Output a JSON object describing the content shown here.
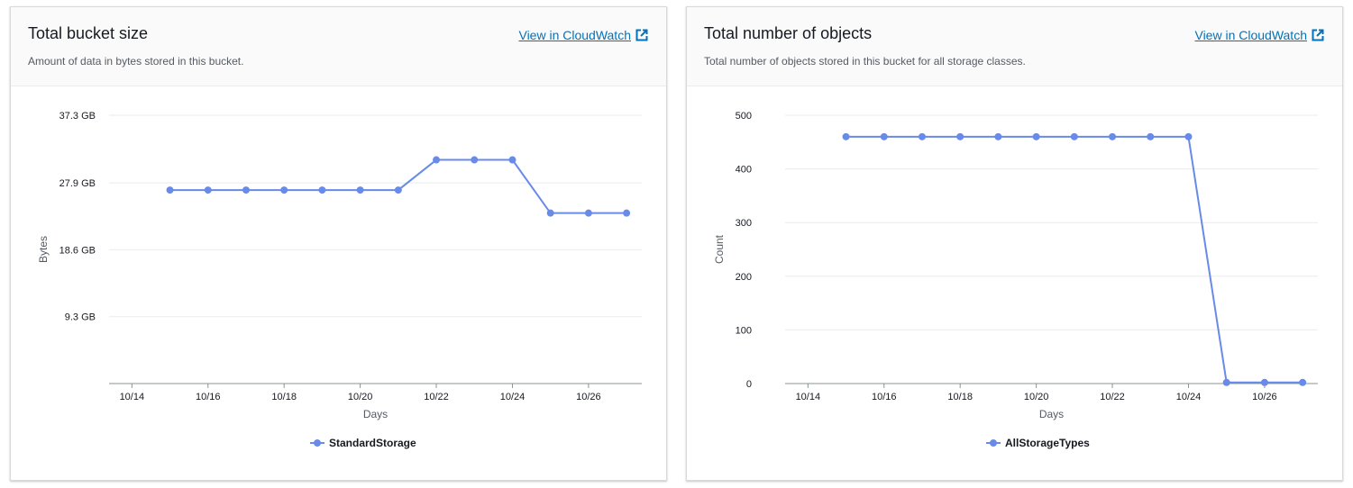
{
  "panels": [
    {
      "title": "Total bucket size",
      "description": "Amount of data in bytes stored in this bucket.",
      "link_label": "View in CloudWatch"
    },
    {
      "title": "Total number of objects",
      "description": "Total number of objects stored in this bucket for all storage classes.",
      "link_label": "View in CloudWatch"
    }
  ],
  "chart_data": [
    {
      "type": "line",
      "title": "",
      "xlabel": "Days",
      "ylabel": "Bytes",
      "x_ticks": [
        "10/14",
        "10/16",
        "10/18",
        "10/20",
        "10/22",
        "10/24",
        "10/26"
      ],
      "y_ticks": [
        "9.3 GB",
        "18.6 GB",
        "27.9 GB",
        "37.3 GB"
      ],
      "y_tick_values": [
        9.3,
        18.6,
        27.9,
        37.3
      ],
      "ylim": [
        0,
        37.3
      ],
      "xlim_days": [
        13.4,
        27.4
      ],
      "x": [
        "10/15",
        "10/16",
        "10/17",
        "10/18",
        "10/19",
        "10/20",
        "10/21",
        "10/22",
        "10/23",
        "10/24",
        "10/25",
        "10/26",
        "10/27"
      ],
      "series": [
        {
          "name": "StandardStorage",
          "color": "#688ae8",
          "values": [
            26.9,
            26.9,
            26.9,
            26.9,
            26.9,
            26.9,
            26.9,
            31.1,
            31.1,
            31.1,
            23.7,
            23.7,
            23.7
          ]
        }
      ],
      "legend_position": "bottom-center",
      "grid": true
    },
    {
      "type": "line",
      "title": "",
      "xlabel": "Days",
      "ylabel": "Count",
      "x_ticks": [
        "10/14",
        "10/16",
        "10/18",
        "10/20",
        "10/22",
        "10/24",
        "10/26"
      ],
      "y_ticks": [
        "0",
        "100",
        "200",
        "300",
        "400",
        "500"
      ],
      "y_tick_values": [
        0,
        100,
        200,
        300,
        400,
        500
      ],
      "ylim": [
        0,
        500
      ],
      "xlim_days": [
        13.4,
        27.4
      ],
      "x": [
        "10/15",
        "10/16",
        "10/17",
        "10/18",
        "10/19",
        "10/20",
        "10/21",
        "10/22",
        "10/23",
        "10/24",
        "10/25",
        "10/26",
        "10/27"
      ],
      "series": [
        {
          "name": "AllStorageTypes",
          "color": "#688ae8",
          "values": [
            460,
            460,
            460,
            460,
            460,
            460,
            460,
            460,
            460,
            460,
            2,
            2,
            2
          ]
        }
      ],
      "legend_position": "bottom-center",
      "grid": true
    }
  ]
}
